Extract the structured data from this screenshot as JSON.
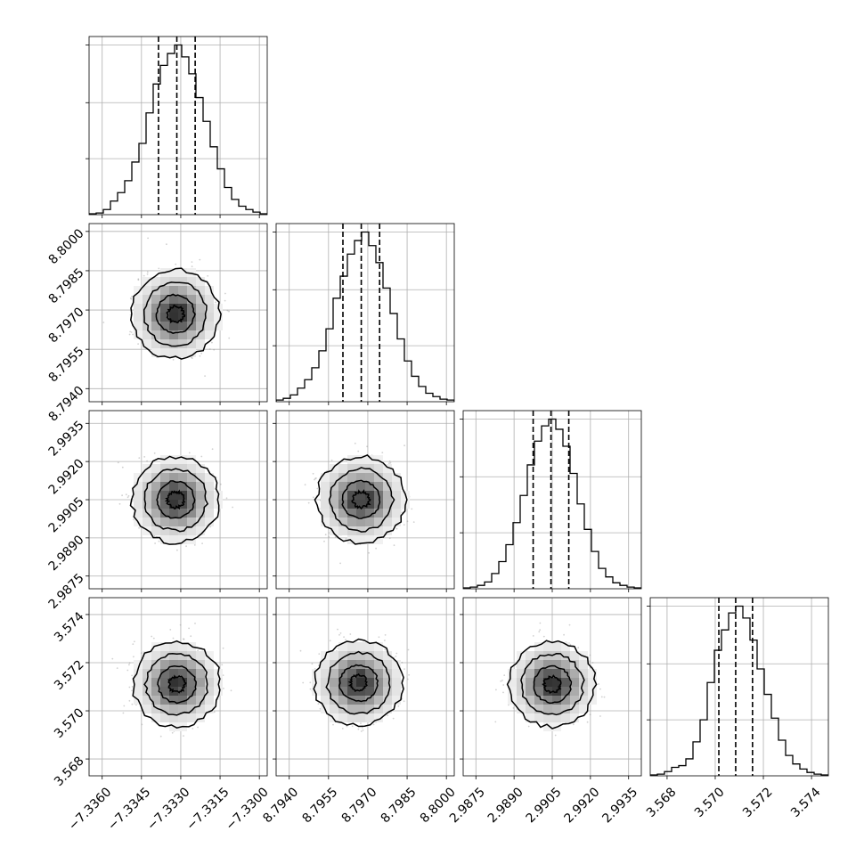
{
  "chart_data": {
    "type": "corner",
    "title": "",
    "grid": true,
    "parameters": [
      {
        "range": [
          -7.3365,
          -7.3297
        ],
        "ticks": [
          -7.336,
          -7.3345,
          -7.333,
          -7.3315,
          -7.33
        ],
        "tick_labels": [
          "−7.3360",
          "−7.3345",
          "−7.3330",
          "−7.3315",
          "−7.3300"
        ],
        "quantiles": [
          -7.33385,
          -7.33315,
          -7.33245
        ],
        "hist_bins": [
          -7.3365,
          -7.3297
        ],
        "hist": [
          0.005,
          0.01,
          0.03,
          0.08,
          0.13,
          0.2,
          0.31,
          0.42,
          0.6,
          0.77,
          0.88,
          0.95,
          1.0,
          0.93,
          0.83,
          0.69,
          0.55,
          0.4,
          0.27,
          0.16,
          0.09,
          0.05,
          0.03,
          0.015,
          0.005
        ],
        "hist_ticks": [
          0.33,
          0.66,
          1.0
        ]
      },
      {
        "range": [
          8.7935,
          8.8003
        ],
        "ticks": [
          8.794,
          8.7955,
          8.797,
          8.7985,
          8.8
        ],
        "tick_labels": [
          "8.7940",
          "8.7955",
          "8.7970",
          "8.7985",
          "8.8000"
        ],
        "quantiles": [
          8.79605,
          8.79675,
          8.79745
        ],
        "hist": [
          0.01,
          0.02,
          0.04,
          0.08,
          0.13,
          0.2,
          0.3,
          0.43,
          0.61,
          0.74,
          0.87,
          0.95,
          1.0,
          0.92,
          0.82,
          0.67,
          0.52,
          0.37,
          0.24,
          0.15,
          0.09,
          0.05,
          0.03,
          0.015,
          0.01
        ],
        "hist_ticks": [
          0.33,
          0.66,
          1.0
        ]
      },
      {
        "range": [
          2.987,
          2.994
        ],
        "ticks": [
          2.9875,
          2.989,
          2.9905,
          2.992,
          2.9935
        ],
        "tick_labels": [
          "2.9875",
          "2.9890",
          "2.9905",
          "2.9920",
          "2.9935"
        ],
        "quantiles": [
          2.98975,
          2.99045,
          2.99115
        ],
        "hist": [
          0.005,
          0.01,
          0.02,
          0.04,
          0.09,
          0.16,
          0.26,
          0.39,
          0.55,
          0.73,
          0.87,
          0.96,
          1.0,
          0.94,
          0.84,
          0.68,
          0.5,
          0.35,
          0.22,
          0.12,
          0.07,
          0.035,
          0.02,
          0.01,
          0.005
        ],
        "hist_ticks": [
          0.33,
          0.66,
          1.0
        ]
      },
      {
        "range": [
          3.5673,
          3.5747
        ],
        "ticks": [
          3.568,
          3.57,
          3.572,
          3.574
        ],
        "tick_labels": [
          "3.568",
          "3.570",
          "3.572",
          "3.574"
        ],
        "quantiles": [
          3.57015,
          3.57085,
          3.57155
        ],
        "hist": [
          0.005,
          0.01,
          0.025,
          0.05,
          0.06,
          0.1,
          0.2,
          0.33,
          0.55,
          0.74,
          0.86,
          0.96,
          1.0,
          0.93,
          0.8,
          0.63,
          0.48,
          0.34,
          0.21,
          0.12,
          0.07,
          0.04,
          0.02,
          0.01,
          0.005
        ],
        "hist_ticks": [
          0.33,
          0.66,
          1.0
        ]
      }
    ],
    "pairs": [
      {
        "row": 1,
        "col": 0,
        "center": [
          -7.3332,
          8.79685
        ],
        "sigma": [
          0.00068,
          0.00069
        ]
      },
      {
        "row": 2,
        "col": 0,
        "center": [
          -7.3332,
          2.9905
        ],
        "sigma": [
          0.00068,
          0.00069
        ]
      },
      {
        "row": 2,
        "col": 1,
        "center": [
          8.79675,
          2.9905
        ],
        "sigma": [
          0.00069,
          0.00069
        ]
      },
      {
        "row": 3,
        "col": 0,
        "center": [
          -7.33315,
          3.5711
        ],
        "sigma": [
          0.00068,
          0.00072
        ]
      },
      {
        "row": 3,
        "col": 1,
        "center": [
          8.79665,
          3.57115
        ],
        "sigma": [
          0.00069,
          0.00072
        ]
      },
      {
        "row": 3,
        "col": 2,
        "center": [
          2.9905,
          3.5711
        ],
        "sigma": [
          0.00069,
          0.00072
        ]
      }
    ]
  }
}
